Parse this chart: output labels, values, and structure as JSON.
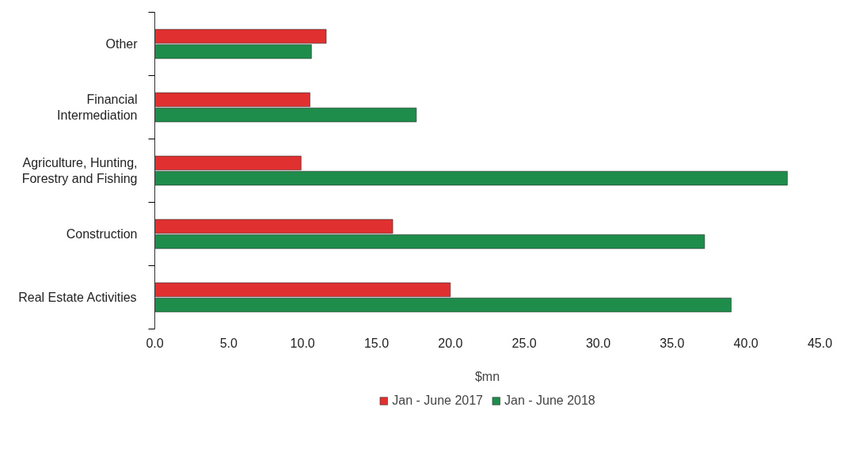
{
  "chart_data": {
    "type": "bar",
    "orientation": "horizontal",
    "xlabel": "$mn",
    "categories": [
      "Other",
      "Financial\nIntermediation",
      "Agriculture, Hunting,\nForestry and Fishing",
      "Construction",
      "Real Estate Activities"
    ],
    "series": [
      {
        "name": "Jan - June 2017",
        "color": "#e03030",
        "values": [
          11.6,
          10.5,
          9.9,
          16.1,
          20.0
        ]
      },
      {
        "name": "Jan - June 2018",
        "color": "#1e8c4a",
        "values": [
          10.6,
          17.7,
          42.8,
          37.2,
          39.0
        ]
      }
    ],
    "xlim": [
      0,
      45
    ],
    "xticks": [
      {
        "value": 0,
        "label": "0.0"
      },
      {
        "value": 5,
        "label": "5.0"
      },
      {
        "value": 10,
        "label": "10.0"
      },
      {
        "value": 15,
        "label": "15.0"
      },
      {
        "value": 20,
        "label": "20.0"
      },
      {
        "value": 25,
        "label": "25.0"
      },
      {
        "value": 30,
        "label": "30.0"
      },
      {
        "value": 35,
        "label": "35.0"
      },
      {
        "value": 40,
        "label": "40.0"
      },
      {
        "value": 45,
        "label": "45.0"
      }
    ],
    "grid": false,
    "legend": "bottom"
  }
}
